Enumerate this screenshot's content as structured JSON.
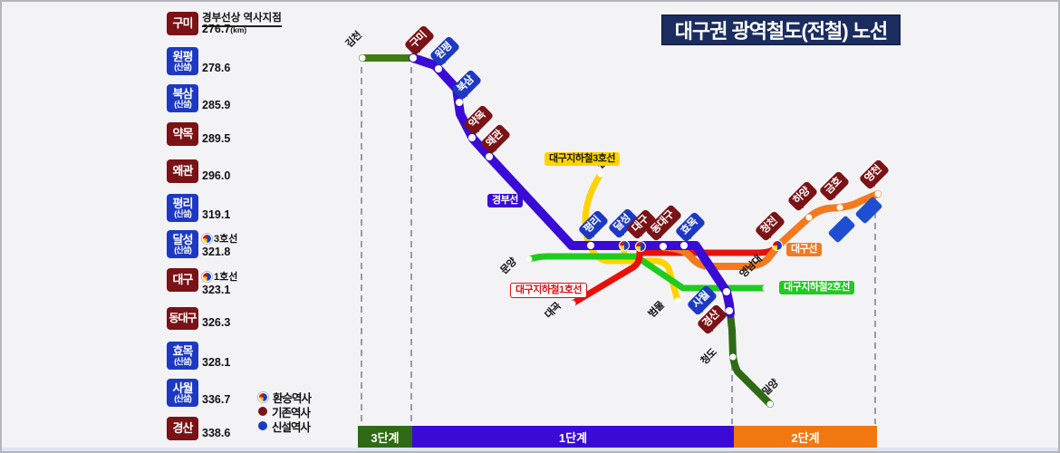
{
  "title": "대구권 광역철도(전철) 노선",
  "panel": {
    "header_note": "경부선상 역사지점",
    "items": [
      {
        "label": "구미",
        "sub": "",
        "type": "existing",
        "km": "276.7",
        "unit": "(km)"
      },
      {
        "label": "원평",
        "sub": "(신설)",
        "type": "new",
        "km": "278.6",
        "unit": ""
      },
      {
        "label": "북삼",
        "sub": "(신설)",
        "type": "new",
        "km": "285.9",
        "unit": ""
      },
      {
        "label": "약목",
        "sub": "",
        "type": "existing",
        "km": "289.5",
        "unit": ""
      },
      {
        "label": "왜관",
        "sub": "",
        "type": "existing",
        "km": "296.0",
        "unit": ""
      },
      {
        "label": "평리",
        "sub": "(신설)",
        "type": "new",
        "km": "319.1",
        "unit": ""
      },
      {
        "label": "달성",
        "sub": "(신설)",
        "type": "new",
        "km": "321.8",
        "unit": "",
        "badge": "3호선"
      },
      {
        "label": "대구",
        "sub": "",
        "type": "existing",
        "km": "323.1",
        "unit": "",
        "badge": "1호선"
      },
      {
        "label": "동대구",
        "sub": "",
        "type": "existing",
        "km": "326.3",
        "unit": ""
      },
      {
        "label": "효목",
        "sub": "(신설)",
        "type": "new",
        "km": "328.1",
        "unit": ""
      },
      {
        "label": "사월",
        "sub": "(신설)",
        "type": "new",
        "km": "336.7",
        "unit": ""
      },
      {
        "label": "경산",
        "sub": "",
        "type": "existing",
        "km": "338.6",
        "unit": ""
      }
    ]
  },
  "legend": [
    {
      "icon": "transfer-pie-icon",
      "label": "환승역사"
    },
    {
      "icon": "existing-station-dot-icon",
      "label": "기존역사"
    },
    {
      "icon": "new-station-dot-icon",
      "label": "신설역사"
    }
  ],
  "phases": [
    {
      "label": "3단계",
      "color": "#2e6b14"
    },
    {
      "label": "1단계",
      "color": "#3a0bd6"
    },
    {
      "label": "2단계",
      "color": "#f0780f"
    }
  ],
  "map": {
    "stations": [
      {
        "label": "구미",
        "type": "existing"
      },
      {
        "label": "원평",
        "type": "new"
      },
      {
        "label": "북삼",
        "type": "new"
      },
      {
        "label": "약목",
        "type": "existing"
      },
      {
        "label": "왜관",
        "type": "existing"
      },
      {
        "label": "평리",
        "type": "new"
      },
      {
        "label": "달성",
        "type": "new",
        "transfer": true
      },
      {
        "label": "대구",
        "type": "existing",
        "transfer": true
      },
      {
        "label": "동대구",
        "type": "existing"
      },
      {
        "label": "효목",
        "type": "new"
      },
      {
        "label": "사월",
        "type": "new"
      },
      {
        "label": "경산",
        "type": "existing"
      },
      {
        "label": "청천",
        "type": "existing",
        "transfer": true
      },
      {
        "label": "하양",
        "type": "existing"
      },
      {
        "label": "금호",
        "type": "existing"
      },
      {
        "label": "영천",
        "type": "existing"
      },
      {
        "label": "김천",
        "type": "area"
      },
      {
        "label": "칠곡",
        "type": "area"
      },
      {
        "label": "문양",
        "type": "area"
      },
      {
        "label": "대곡",
        "type": "area"
      },
      {
        "label": "범물",
        "type": "area"
      },
      {
        "label": "영남대",
        "type": "area"
      },
      {
        "label": "청도",
        "type": "area"
      },
      {
        "label": "밀양",
        "type": "area"
      }
    ],
    "line_labels": {
      "gyeongbu": "경부선",
      "line3": "대구지하철3호선",
      "line1": "대구지하철1호선",
      "line2": "대구지하철2호선",
      "daeguline": "대구선"
    }
  },
  "colors": {
    "main_line_blue": "#3a0bd6",
    "daegu_line_orange": "#f5791d",
    "metro_line1_red": "#e8100a",
    "metro_line2_green": "#1ecb1e",
    "metro_line3_yellow": "#ffd300",
    "gimcheon_green": "#3f7c12",
    "south_green": "#2e6b14",
    "existing_box": "#7a1216",
    "new_box": "#1d39c4",
    "title_navy": "#1b2c5e"
  }
}
